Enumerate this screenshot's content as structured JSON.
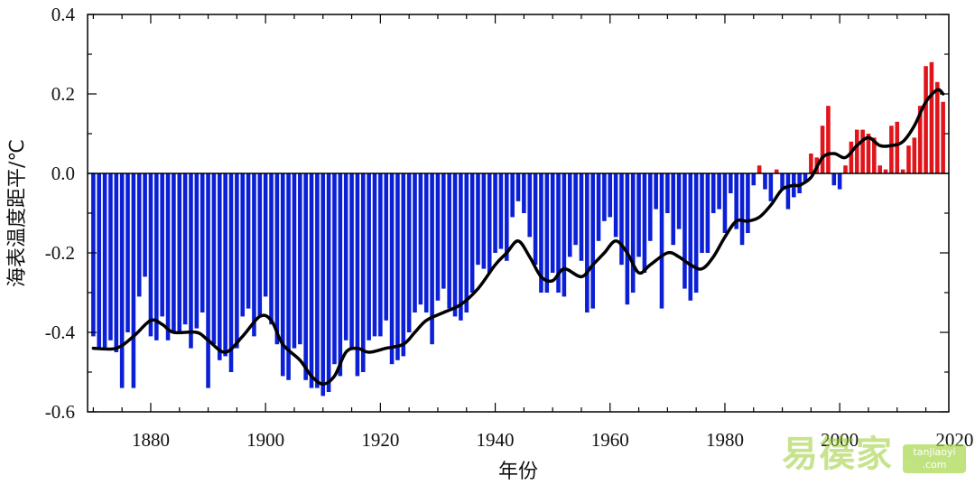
{
  "chart_data": {
    "type": "bar",
    "xlabel": "年份",
    "ylabel": "海表温度距平/℃",
    "xlim": [
      1869,
      2019
    ],
    "ylim": [
      -0.6,
      0.4
    ],
    "x_ticks": [
      "1880",
      "1900",
      "1920",
      "1940",
      "1960",
      "1980",
      "2000",
      "2020"
    ],
    "y_ticks": [
      "0.4",
      "0.2",
      "0.0",
      "-0.2",
      "-0.4",
      "-0.6"
    ],
    "colors": {
      "negative": "#0b1fd6",
      "positive": "#e0141a",
      "smooth": "#000000"
    },
    "years_start": 1870,
    "anomaly": [
      -0.41,
      -0.44,
      -0.44,
      -0.42,
      -0.45,
      -0.54,
      -0.4,
      -0.54,
      -0.31,
      -0.26,
      -0.41,
      -0.42,
      -0.36,
      -0.42,
      -0.4,
      -0.4,
      -0.38,
      -0.44,
      -0.39,
      -0.35,
      -0.54,
      -0.43,
      -0.47,
      -0.46,
      -0.5,
      -0.44,
      -0.36,
      -0.34,
      -0.41,
      -0.36,
      -0.31,
      -0.38,
      -0.43,
      -0.51,
      -0.52,
      -0.44,
      -0.43,
      -0.52,
      -0.54,
      -0.54,
      -0.56,
      -0.55,
      -0.48,
      -0.51,
      -0.42,
      -0.44,
      -0.51,
      -0.5,
      -0.42,
      -0.41,
      -0.41,
      -0.37,
      -0.48,
      -0.47,
      -0.46,
      -0.4,
      -0.35,
      -0.33,
      -0.35,
      -0.43,
      -0.32,
      -0.29,
      -0.34,
      -0.36,
      -0.37,
      -0.35,
      -0.3,
      -0.23,
      -0.24,
      -0.25,
      -0.2,
      -0.19,
      -0.22,
      -0.11,
      -0.07,
      -0.1,
      -0.16,
      -0.23,
      -0.3,
      -0.3,
      -0.25,
      -0.3,
      -0.31,
      -0.21,
      -0.18,
      -0.22,
      -0.35,
      -0.34,
      -0.17,
      -0.12,
      -0.11,
      -0.16,
      -0.23,
      -0.33,
      -0.3,
      -0.21,
      -0.25,
      -0.17,
      -0.09,
      -0.34,
      -0.1,
      -0.18,
      -0.14,
      -0.29,
      -0.32,
      -0.3,
      -0.2,
      -0.2,
      -0.1,
      -0.09,
      -0.15,
      -0.05,
      -0.14,
      -0.18,
      -0.15,
      -0.03,
      0.02,
      -0.04,
      -0.07,
      0.01,
      -0.04,
      -0.09,
      -0.06,
      -0.05,
      -0.02,
      0.05,
      0.04,
      0.12,
      0.17,
      -0.03,
      -0.04,
      0.02,
      0.08,
      0.11,
      0.11,
      0.1,
      0.09,
      0.02,
      0.01,
      0.12,
      0.13,
      0.01,
      0.07,
      0.09,
      0.17,
      0.27,
      0.28,
      0.23,
      0.18
    ],
    "smooth": [
      [
        1870,
        -0.44
      ],
      [
        1874,
        -0.44
      ],
      [
        1877,
        -0.41
      ],
      [
        1880,
        -0.37
      ],
      [
        1882,
        -0.38
      ],
      [
        1884,
        -0.4
      ],
      [
        1888,
        -0.4
      ],
      [
        1890,
        -0.42
      ],
      [
        1893,
        -0.45
      ],
      [
        1896,
        -0.41
      ],
      [
        1899,
        -0.36
      ],
      [
        1901,
        -0.37
      ],
      [
        1903,
        -0.43
      ],
      [
        1906,
        -0.47
      ],
      [
        1908,
        -0.51
      ],
      [
        1910,
        -0.53
      ],
      [
        1912,
        -0.51
      ],
      [
        1914,
        -0.45
      ],
      [
        1916,
        -0.44
      ],
      [
        1918,
        -0.45
      ],
      [
        1921,
        -0.44
      ],
      [
        1924,
        -0.43
      ],
      [
        1926,
        -0.4
      ],
      [
        1928,
        -0.37
      ],
      [
        1931,
        -0.35
      ],
      [
        1934,
        -0.33
      ],
      [
        1937,
        -0.29
      ],
      [
        1940,
        -0.23
      ],
      [
        1942,
        -0.2
      ],
      [
        1944,
        -0.17
      ],
      [
        1946,
        -0.21
      ],
      [
        1948,
        -0.26
      ],
      [
        1950,
        -0.27
      ],
      [
        1952,
        -0.24
      ],
      [
        1955,
        -0.26
      ],
      [
        1957,
        -0.23
      ],
      [
        1959,
        -0.2
      ],
      [
        1961,
        -0.17
      ],
      [
        1963,
        -0.2
      ],
      [
        1965,
        -0.25
      ],
      [
        1967,
        -0.23
      ],
      [
        1970,
        -0.2
      ],
      [
        1972,
        -0.21
      ],
      [
        1974,
        -0.23
      ],
      [
        1976,
        -0.24
      ],
      [
        1978,
        -0.21
      ],
      [
        1980,
        -0.16
      ],
      [
        1982,
        -0.12
      ],
      [
        1984,
        -0.12
      ],
      [
        1986,
        -0.11
      ],
      [
        1988,
        -0.08
      ],
      [
        1990,
        -0.04
      ],
      [
        1992,
        -0.03
      ],
      [
        1993,
        -0.03
      ],
      [
        1995,
        -0.01
      ],
      [
        1997,
        0.04
      ],
      [
        1999,
        0.05
      ],
      [
        2001,
        0.04
      ],
      [
        2003,
        0.07
      ],
      [
        2005,
        0.09
      ],
      [
        2007,
        0.07
      ],
      [
        2009,
        0.07
      ],
      [
        2011,
        0.08
      ],
      [
        2013,
        0.12
      ],
      [
        2015,
        0.18
      ],
      [
        2017,
        0.21
      ],
      [
        2018,
        0.2
      ]
    ]
  }
}
